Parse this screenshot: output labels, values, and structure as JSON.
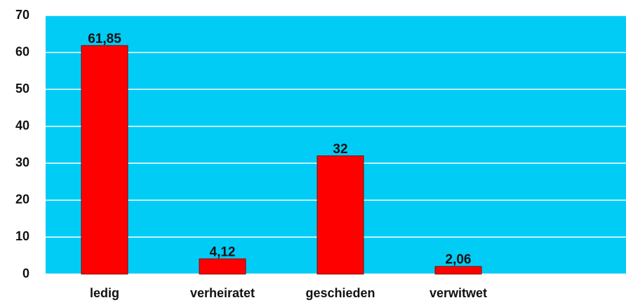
{
  "chart_data": {
    "type": "bar",
    "categories": [
      "ledig",
      "verheiratet",
      "geschieden",
      "verwitwet"
    ],
    "values": [
      61.85,
      4.12,
      32,
      2.06
    ],
    "value_labels": [
      "61,85",
      "4,12",
      "32",
      "2,06"
    ],
    "color": "#ff0000",
    "background": "#00ccf5",
    "ylim": [
      0,
      70
    ],
    "yticks": [
      0,
      10,
      20,
      30,
      40,
      50,
      60,
      70
    ],
    "grid": true
  }
}
